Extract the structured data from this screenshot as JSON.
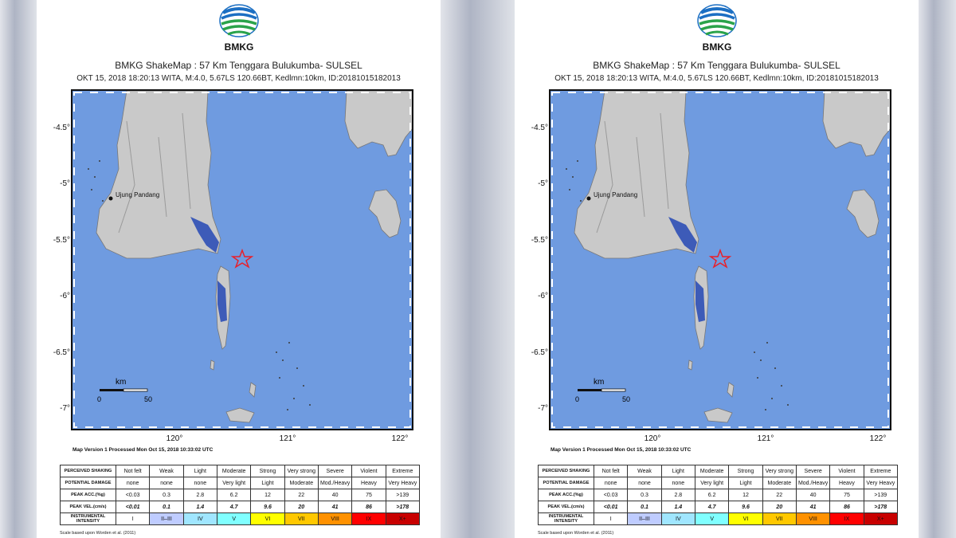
{
  "panels": [
    {
      "logo_text": "BMKG",
      "title": "BMKG ShakeMap : 57 Km Tenggara Bulukumba- SULSEL",
      "subtitle": "OKT 15, 2018 18:20:13 WITA, M:4.0, 5.67LS 120.66BT, Kedlmn:10km, ID:20181015182013",
      "city_label": "Ujung Pandang",
      "y_ticks": [
        "-4.5°",
        "-5°",
        "-5.5°",
        "-6°",
        "-6.5°",
        "-7°"
      ],
      "x_ticks": [
        "120°",
        "121°",
        "122°"
      ],
      "scale_unit": "km",
      "scale_min": "0",
      "scale_max": "50",
      "processed": "Map Version 1 Processed Mon Oct 15, 2018 10:33:02 UTC",
      "legend": {
        "rows": [
          {
            "header": "PERCEIVED SHAKING",
            "cells": [
              "Not felt",
              "Weak",
              "Light",
              "Moderate",
              "Strong",
              "Very strong",
              "Severe",
              "Violent",
              "Extreme"
            ]
          },
          {
            "header": "POTENTIAL DAMAGE",
            "cells": [
              "none",
              "none",
              "none",
              "Very light",
              "Light",
              "Moderate",
              "Mod./Heavy",
              "Heavy",
              "Very Heavy"
            ]
          },
          {
            "header": "PEAK ACC.(%g)",
            "cells": [
              "<0.03",
              "0.3",
              "2.8",
              "6.2",
              "12",
              "22",
              "40",
              "75",
              ">139"
            ]
          },
          {
            "header": "PEAK VEL.(cm/s)",
            "cells": [
              "<0.01",
              "0.1",
              "1.4",
              "4.7",
              "9.6",
              "20",
              "41",
              "86",
              ">178"
            ]
          },
          {
            "header": "INSTRUMENTAL INTENSITY",
            "cells": [
              "I",
              "II–III",
              "IV",
              "V",
              "VI",
              "VII",
              "VIII",
              "IX",
              "X+"
            ]
          }
        ],
        "intensity_colors": [
          "#ffffff",
          "#bfccff",
          "#a0e6ff",
          "#80ffff",
          "#ffff00",
          "#ffc800",
          "#ff9100",
          "#ff0000",
          "#c80000"
        ],
        "footnote": "Scale based upon Worden et al. (2011)"
      }
    },
    {
      "logo_text": "BMKG",
      "title": "BMKG ShakeMap : 57 Km Tenggara Bulukumba- SULSEL",
      "subtitle": "OKT 15, 2018 18:20:13 WITA, M:4.0, 5.67LS 120.66BT, Kedlmn:10km, ID:20181015182013",
      "city_label": "Ujung Pandang",
      "y_ticks": [
        "-4.5°",
        "-5°",
        "-5.5°",
        "-6°",
        "-6.5°",
        "-7°"
      ],
      "x_ticks": [
        "120°",
        "121°",
        "122°"
      ],
      "scale_unit": "km",
      "scale_min": "0",
      "scale_max": "50",
      "processed": "Map Version 1 Processed Mon Oct 15, 2018 10:33:02 UTC",
      "legend": {
        "rows": [
          {
            "header": "PERCEIVED SHAKING",
            "cells": [
              "Not felt",
              "Weak",
              "Light",
              "Moderate",
              "Strong",
              "Very strong",
              "Severe",
              "Violent",
              "Extreme"
            ]
          },
          {
            "header": "POTENTIAL DAMAGE",
            "cells": [
              "none",
              "none",
              "none",
              "Very light",
              "Light",
              "Moderate",
              "Mod./Heavy",
              "Heavy",
              "Very Heavy"
            ]
          },
          {
            "header": "PEAK ACC.(%g)",
            "cells": [
              "<0.03",
              "0.3",
              "2.8",
              "6.2",
              "12",
              "22",
              "40",
              "75",
              ">139"
            ]
          },
          {
            "header": "PEAK VEL.(cm/s)",
            "cells": [
              "<0.01",
              "0.1",
              "1.4",
              "4.7",
              "9.6",
              "20",
              "41",
              "86",
              ">178"
            ]
          },
          {
            "header": "INSTRUMENTAL INTENSITY",
            "cells": [
              "I",
              "II–III",
              "IV",
              "V",
              "VI",
              "VII",
              "VIII",
              "IX",
              "X+"
            ]
          }
        ],
        "intensity_colors": [
          "#ffffff",
          "#bfccff",
          "#a0e6ff",
          "#80ffff",
          "#ffff00",
          "#ffc800",
          "#ff9100",
          "#ff0000",
          "#c80000"
        ],
        "footnote": "Scale based upon Worden et al. (2011)"
      }
    }
  ],
  "colors": {
    "sea": "#6f9be0",
    "land": "#c9c9c9",
    "epicenter_star": "#e8202a",
    "logo_blue": "#1c6fc3",
    "logo_green": "#2aa34a"
  }
}
